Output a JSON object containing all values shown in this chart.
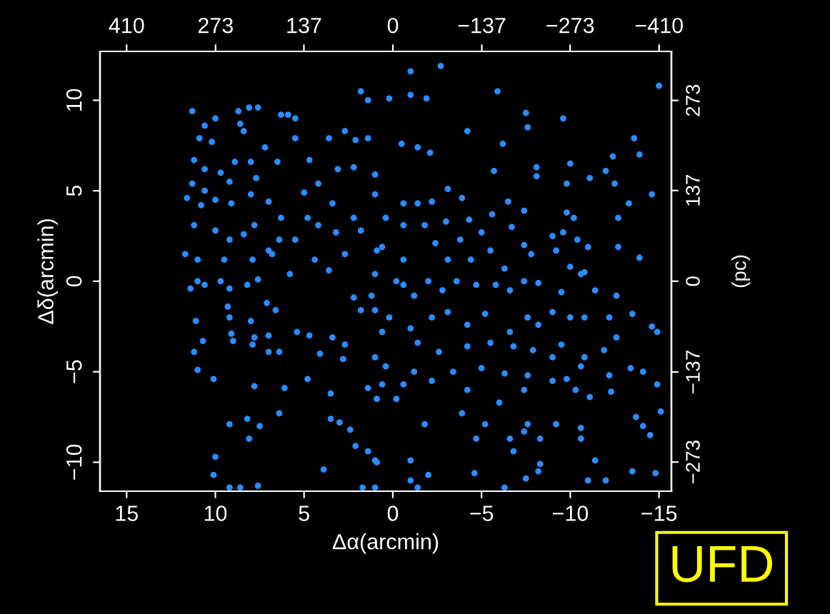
{
  "chart_data": {
    "type": "scatter",
    "xlabel": "Δα(arcmin)",
    "ylabel": "Δδ(arcmin)",
    "y2label": "(pc)",
    "xlim": [
      16.5,
      -15.7
    ],
    "ylim": [
      -11.6,
      12.7
    ],
    "xticks": [
      15,
      10,
      5,
      0,
      {
        "value": -5,
        "label": "−5"
      },
      {
        "value": -10,
        "label": "−10"
      },
      {
        "value": -15,
        "label": "−15"
      }
    ],
    "yticks": [
      {
        "value": -10,
        "label": "−10"
      },
      {
        "value": -5,
        "label": "−5"
      },
      0,
      5,
      10
    ],
    "x2lim": [
      451,
      -429
    ],
    "x2ticks": [
      410,
      273,
      137,
      0,
      {
        "value": -137,
        "label": "−137"
      },
      {
        "value": -273,
        "label": "−273"
      },
      {
        "value": -410,
        "label": "−410"
      }
    ],
    "y2lim": [
      -317,
      347
    ],
    "y2ticks": [
      {
        "value": -273,
        "label": "−273"
      },
      {
        "value": -137,
        "label": "−137"
      },
      0,
      137,
      273
    ],
    "grid": false,
    "marker": "circle",
    "annotations": [
      "UFD"
    ],
    "series": [
      {
        "color": "#2a8cff",
        "x": [
          11.3,
          8.7,
          8.1,
          7.6,
          6.3,
          5.9,
          1.8,
          1.4,
          10.6,
          10.0,
          8.6,
          8.4,
          5.5,
          10.9,
          10.2,
          7.2,
          5.5,
          3.6,
          2.7,
          2.1,
          1.4,
          11.2,
          10.6,
          8.9,
          8.0,
          6.5,
          4.7,
          3.1,
          2.2,
          1.0,
          11.3,
          10.6,
          9.7,
          9.2,
          7.7,
          11.6,
          10.8,
          10.0,
          9.1,
          8.0,
          7.0,
          6.3,
          5.0,
          4.2,
          3.4,
          2.2,
          1.0,
          11.2,
          10.0,
          9.2,
          8.4,
          7.8,
          7.0,
          6.4,
          5.5,
          4.8,
          4.2,
          3.2,
          2.7,
          1.8,
          0.9,
          11.7,
          11.0,
          9.5,
          7.9,
          6.8,
          5.8,
          4.4,
          3.6,
          1.0,
          -1.0,
          -2.7,
          0.2,
          -1.0,
          -1.9,
          -5.9,
          -15.0,
          -7.5,
          -7.6,
          -9.6,
          -4.2,
          -0.5,
          -1.4,
          -2.1,
          -6.2,
          -13.6,
          -13.9,
          -12.4,
          -5.7,
          -8.1,
          -8.1,
          -10.0,
          -12.0,
          -9.8,
          -11.1,
          -12.5,
          -3.1,
          -3.9,
          -6.5,
          -13.3,
          -14.6,
          -12.7,
          -0.6,
          -1.4,
          -2.2,
          -3.0,
          -4.3,
          -5.6,
          -6.7,
          -7.4,
          -9.8,
          -10.2,
          -9.0,
          -9.6,
          -10.4,
          -11.0,
          -12.7,
          -13.9,
          0.4,
          -0.6,
          -1.8,
          -2.4,
          -3.8,
          -5.0,
          -5.5,
          -7.4,
          -7.8,
          -9.2,
          -10.0,
          -10.8,
          0.6,
          -0.6,
          -3.1,
          -4.4,
          -6.3,
          11.0,
          11.4,
          10.6,
          9.7,
          9.2,
          8.2,
          7.6,
          9.3,
          9.2,
          7.1,
          6.6,
          11.1,
          8.0,
          9.1,
          9.0,
          7.8,
          7.9,
          7.0,
          10.7,
          11.2,
          11.0,
          10.1,
          7.0,
          6.4,
          5.4,
          4.7,
          4.1,
          3.4,
          2.7,
          2.8,
          4.8,
          7.8,
          6.1,
          3.5,
          6.4,
          9.2,
          8.2,
          7.5,
          8.1,
          3.5,
          3.0,
          2.4,
          2.1,
          1.4,
          0.9,
          10.0,
          10.1,
          9.2,
          8.6,
          7.6,
          3.9,
          1.7,
          1.0,
          0.6,
          0.9,
          1.4,
          1.0,
          1.8,
          1.2,
          2.2,
          -0.6,
          -1.2,
          -0.2,
          -2.0,
          -2.8,
          -3.6,
          -4.7,
          -5.8,
          -6.6,
          -7.4,
          -8.2,
          -9.5,
          -10.6,
          -11.4,
          -12.6,
          1.0,
          0.2,
          -1.0,
          -2.2,
          -3.1,
          -4.2,
          -5.2,
          -6.6,
          -7.6,
          -8.2,
          -9.0,
          -10.0,
          -10.8,
          -12.2,
          -13.5,
          -14.9,
          -14.6,
          0.6,
          -1.4,
          -2.6,
          -4.2,
          -5.5,
          -6.8,
          -7.9,
          -9.0,
          -9.5,
          -10.8,
          -11.9,
          -12.6,
          0.4,
          -1.2,
          -3.4,
          -5.0,
          -6.3,
          -7.6,
          -9.0,
          -9.8,
          -10.6,
          -12.2,
          -13.4,
          -14.1,
          -14.9,
          -0.6,
          -2.2,
          -4.2,
          -6.0,
          -7.4,
          -10.3,
          -11.1,
          -12.3,
          -0.2,
          -3.9,
          -5.2,
          -7.6,
          -9.2,
          -10.6,
          -1.8,
          -4.7,
          -6.6,
          -7.4,
          -8.3,
          -6.8,
          -10.6,
          -11.4,
          1.0,
          -1.0,
          -2.0,
          -1.0,
          -1.4,
          -4.6,
          -6.3,
          -7.5,
          -8.3,
          -8.2,
          -11.0,
          -12.0,
          -13.5,
          -13.7,
          -14.1,
          -14.5,
          -14.8,
          -15.1
        ],
        "values": [
          9.4,
          9.4,
          9.6,
          9.6,
          9.2,
          9.2,
          10.5,
          10.0,
          8.6,
          9.0,
          8.7,
          8.3,
          9.0,
          7.9,
          7.7,
          7.4,
          7.9,
          7.9,
          8.3,
          7.8,
          7.9,
          6.7,
          6.2,
          6.6,
          6.6,
          6.6,
          6.7,
          6.2,
          6.3,
          5.9,
          5.4,
          5.0,
          6.0,
          5.5,
          5.7,
          4.6,
          4.2,
          4.5,
          4.3,
          4.8,
          4.4,
          3.5,
          4.9,
          5.4,
          4.3,
          3.5,
          4.8,
          3.1,
          2.8,
          2.3,
          2.6,
          3.1,
          1.7,
          2.3,
          2.3,
          3.5,
          3.1,
          2.7,
          1.5,
          2.8,
          1.7,
          1.5,
          1.2,
          1.2,
          1.2,
          1.5,
          0.4,
          1.2,
          0.6,
          0.4,
          11.6,
          11.9,
          10.1,
          10.3,
          10.1,
          10.5,
          10.8,
          9.3,
          8.5,
          9.0,
          8.3,
          7.6,
          7.4,
          7.1,
          7.6,
          7.9,
          7.0,
          6.9,
          6.1,
          6.3,
          5.8,
          6.5,
          6.1,
          5.4,
          5.7,
          5.4,
          5.1,
          4.6,
          4.4,
          4.3,
          4.8,
          3.5,
          4.3,
          4.3,
          4.4,
          3.3,
          3.4,
          3.7,
          3.0,
          3.9,
          3.8,
          3.5,
          2.5,
          2.7,
          2.3,
          1.9,
          1.9,
          1.3,
          3.5,
          3.1,
          3.1,
          2.1,
          2.3,
          2.7,
          1.7,
          2.0,
          1.5,
          1.7,
          0.8,
          0.5,
          1.9,
          1.2,
          1.2,
          1.2,
          0.7,
          0.0,
          -0.4,
          -0.2,
          0.0,
          -0.4,
          -0.2,
          0.1,
          -1.4,
          -2.0,
          -1.2,
          -1.6,
          -2.2,
          -2.2,
          -2.9,
          -3.3,
          -3.1,
          -3.5,
          -3.0,
          -3.3,
          -3.9,
          -4.9,
          -5.4,
          -3.9,
          -3.9,
          -2.8,
          -3.0,
          -4.0,
          -3.1,
          -3.5,
          -4.3,
          -5.4,
          -5.8,
          -5.9,
          -6.2,
          -7.3,
          -7.9,
          -7.6,
          -8.0,
          -8.7,
          -7.6,
          -7.8,
          -8.2,
          -9.1,
          -9.4,
          -10.0,
          -9.7,
          -10.7,
          -11.4,
          -11.4,
          -11.3,
          -10.4,
          -11.4,
          -11.4,
          -5.7,
          -6.5,
          -5.9,
          -4.2,
          -1.6,
          -0.8,
          -0.9,
          -0.2,
          -0.8,
          0.0,
          0.0,
          -0.5,
          0.0,
          -0.2,
          -0.2,
          -0.5,
          0.0,
          -0.1,
          -0.6,
          0.4,
          -0.5,
          -0.8,
          -1.6,
          -2.0,
          -2.6,
          -2.0,
          -1.7,
          -2.4,
          -1.8,
          -2.8,
          -2.0,
          -2.4,
          -1.7,
          -2.0,
          -2.0,
          -2.0,
          -1.8,
          -2.8,
          -2.5,
          -2.8,
          -3.4,
          -3.9,
          -3.6,
          -3.4,
          -3.6,
          -3.8,
          -4.2,
          -3.5,
          -4.2,
          -3.8,
          -3.1,
          -4.7,
          -5.0,
          -5.0,
          -4.8,
          -5.1,
          -5.2,
          -5.5,
          -5.4,
          -4.7,
          -5.2,
          -4.8,
          -5.0,
          -5.7,
          -5.7,
          -5.5,
          -6.0,
          -6.7,
          -6.0,
          -6.0,
          -6.4,
          -6.1,
          -6.5,
          -7.3,
          -7.9,
          -7.9,
          -7.9,
          -8.1,
          -7.9,
          -8.7,
          -8.7,
          -8.3,
          -8.7,
          -9.4,
          -8.7,
          -9.9,
          -9.9,
          -9.9,
          -10.7,
          -11.0,
          -11.4,
          -10.6,
          -11.4,
          -10.9,
          -10.1,
          -10.5,
          -11.0,
          -11.0,
          -10.5,
          -7.5,
          -8.0,
          -8.5,
          -10.6,
          -7.2
        ]
      }
    ]
  }
}
